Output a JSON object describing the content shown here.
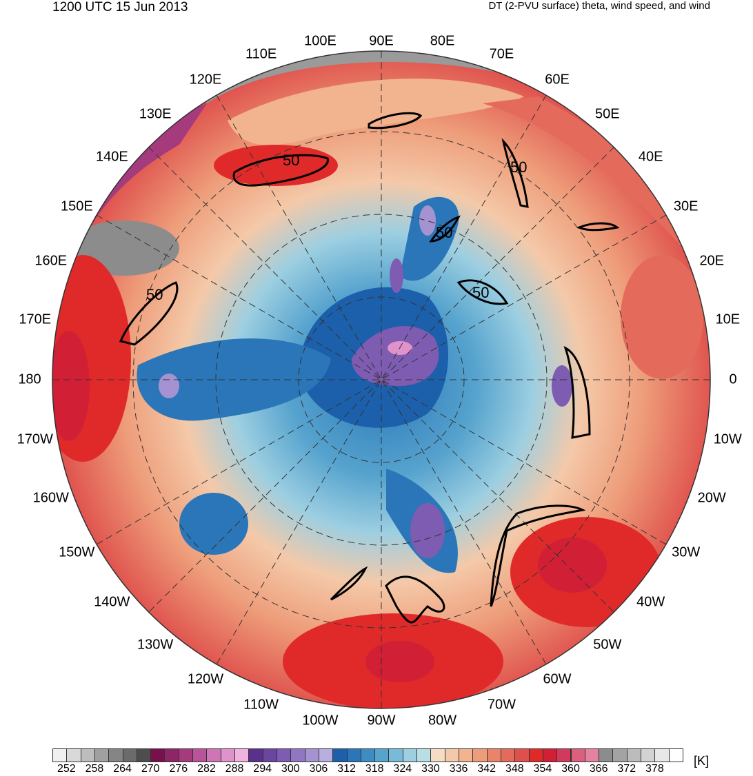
{
  "header": {
    "time_label": "1200 UTC 15 Jun 2013",
    "field_label": "DT (2-PVU surface) theta, wind speed, and wind"
  },
  "map": {
    "projection": "north-polar-stereographic",
    "contour_label": "50",
    "longitude_labels": [
      "90E",
      "80E",
      "70E",
      "60E",
      "50E",
      "40E",
      "30E",
      "20E",
      "10E",
      "0",
      "10W",
      "20W",
      "30W",
      "40W",
      "50W",
      "60W",
      "70W",
      "80W",
      "90W",
      "100W",
      "110W",
      "120W",
      "130W",
      "140W",
      "150W",
      "160W",
      "170W",
      "180",
      "170E",
      "160E",
      "150E",
      "140E",
      "130E",
      "120E",
      "110E",
      "100E"
    ]
  },
  "colorbar": {
    "unit": "[K]",
    "tick_labels": [
      "252",
      "258",
      "264",
      "270",
      "276",
      "282",
      "288",
      "294",
      "300",
      "306",
      "312",
      "318",
      "324",
      "330",
      "336",
      "342",
      "348",
      "354",
      "360",
      "366",
      "372",
      "378"
    ],
    "colors": [
      "#f0f0f0",
      "#d9d9d9",
      "#bdbdbd",
      "#a0a0a0",
      "#858585",
      "#6b6b6b",
      "#4d4d4d",
      "#7a0f4e",
      "#8e2566",
      "#a53a7c",
      "#b9549a",
      "#cf74b4",
      "#e092cb",
      "#f0b2df",
      "#5b2f8c",
      "#6b45a0",
      "#7d5cb2",
      "#9077c2",
      "#a593d1",
      "#b9aee0",
      "#1c5fab",
      "#2a76b8",
      "#3d8dc4",
      "#56a3ce",
      "#78bad8",
      "#9dcfe1",
      "#b9dfe6",
      "#f6dcc4",
      "#f4c9a9",
      "#f2b48e",
      "#ee9d7a",
      "#e9846a",
      "#e46b5c",
      "#df4f4c",
      "#e02a2a",
      "#d11f35",
      "#d23a5d",
      "#dc5f7e",
      "#e383a0",
      "#8c8c8c",
      "#a3a3a3",
      "#bcbcbc",
      "#d3d3d3",
      "#e8e8e8",
      "#ffffff"
    ]
  }
}
